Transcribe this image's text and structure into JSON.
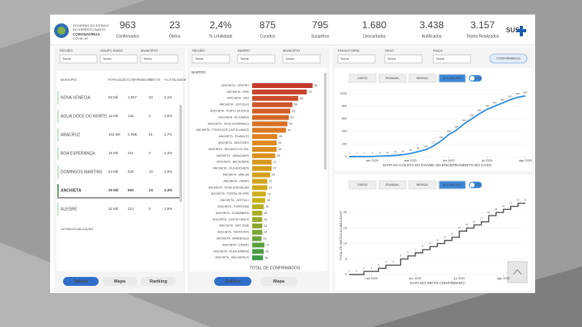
{
  "header": {
    "logo_lines": [
      "GOVERNO DO ESTADO",
      "DO ESPÍRITO SANTO"
    ],
    "logo_sub": "CORONAVÍRUS",
    "logo_sub2": "COVID-19",
    "sus": "SUS"
  },
  "kpis": [
    {
      "value": "963",
      "label": "Confirmados"
    },
    {
      "value": "23",
      "label": "Óbitos"
    },
    {
      "value": "2,4%",
      "label": "% Letalidade"
    },
    {
      "value": "875",
      "label": "Curados"
    },
    {
      "value": "795",
      "label": "Suspeitos"
    },
    {
      "value": "1.680",
      "label": "Descartados"
    },
    {
      "value": "3.438",
      "label": "Notificados"
    },
    {
      "value": "3.157",
      "label": "Testes Realizados"
    }
  ],
  "left": {
    "filters": [
      {
        "label": "REGIÃO",
        "value": "Todos"
      },
      {
        "label": "GRUPO IDADE",
        "value": "Todos"
      },
      {
        "label": "MUNICÍPIO",
        "value": "Todos"
      }
    ],
    "columns": [
      "MUNICÍPIO",
      "POPULAÇÃO",
      "CONFIRMADOS",
      "ÓBITOS",
      "% LETALIDADE"
    ],
    "rows": [
      [
        "NOVA VENÉCIA",
        "50 Mil",
        "1.557",
        "33",
        "2,1%"
      ],
      [
        "ÁGUA DOCE DO NORTE",
        "12 Mil",
        "132",
        "2",
        "1,5%"
      ],
      [
        "ARACRUZ",
        "103 Mil",
        "2.998",
        "51",
        "1,7%"
      ],
      [
        "BOA ESPERANÇA",
        "15 Mil",
        "211",
        "3",
        "1,4%"
      ],
      [
        "DOMINGOS MARTINS",
        "34 Mil",
        "520",
        "10",
        "1,9%"
      ],
      [
        "ANCHIETA",
        "30 Mil",
        "963",
        "23",
        "2,4%"
      ],
      [
        "ALEGRE",
        "31 Mil",
        "312",
        "5",
        "1,6%"
      ]
    ],
    "selected": 5,
    "footer": "ÚLTIMA ATUALIZAÇÃO",
    "buttons": [
      "Tabela",
      "Mapa",
      "Ranking"
    ],
    "active_button": 0
  },
  "middle": {
    "filters": [
      {
        "label": "REGIÃO",
        "value": "Todos"
      },
      {
        "label": "BAIRRO",
        "value": "Todos"
      },
      {
        "label": "MUNICÍPIO",
        "value": "Todos"
      }
    ],
    "chart_data": {
      "type": "bar",
      "title": "BAIRRO",
      "xlabel": "TOTAL DE CONFIRMADOS",
      "xlim": [
        0,
        90
      ],
      "palette": [
        "#c43b2c",
        "#e08a1e",
        "#c9b21a",
        "#3d9a4a"
      ],
      "categories": [
        "ANCHIETA - CENTRO",
        "ANCHIETA - IRIRI",
        "ANCHIETA - UBU",
        "ANCHIETA - JUSTIÇA II",
        "ANCHIETA - PORTO DA ROÇA",
        "ANCHIETA - ALVORADA",
        "ANCHIETA - NOVA ESPERANÇA",
        "ANCHIETA - PONTA DOS CASTELHANOS",
        "ANCHIETA - PLANALTO",
        "ANCHIETA - MONTEIRO",
        "ANCHIETA - RECANTO DO SOL",
        "ANCHIETA - JABAQUARA",
        "ANCHIETA - BELVEDERE",
        "ANCHIETA - VILA ANCHIETA",
        "ANCHIETA - MÃE BÁ",
        "ANCHIETA - PARATI",
        "ANCHIETA - NOVA JERUSALÉM",
        "ANCHIETA - PORTAL DE IRIRI",
        "ANCHIETA - JUSTIÇA I",
        "ANCHIETA - ITAPEROBA",
        "ANCHIETA - GUANABARA",
        "ANCHIETA - CASTELHANOS",
        "ANCHIETA - SÃO JOSÉ",
        "ANCHIETA - SANTA RITA",
        "ANCHIETA - ARREBOLES",
        "ANCHIETA - CÁRDIO",
        "ANCHIETA - DUAS BARRAS",
        "ANCHIETA - SÃO MATEUS"
      ],
      "values": [
        84,
        76,
        64,
        56,
        53,
        51,
        49,
        47,
        35,
        34,
        34,
        32,
        27,
        27,
        25,
        21,
        21,
        19,
        18,
        16,
        14,
        14,
        14,
        14,
        13,
        17,
        16,
        15
      ]
    },
    "buttons": [
      "Gráfico",
      "Mapa"
    ],
    "active_button": 0
  },
  "right": {
    "filters": [
      {
        "label": "FAIXA ETÁRIA",
        "value": "Todos"
      },
      {
        "label": "SEXO",
        "value": "Todos"
      },
      {
        "label": "RAÇA",
        "value": "Todos"
      }
    ],
    "pill": "CONFIRMADOS",
    "charts": [
      {
        "type": "line",
        "buttons": [
          "DIÁRIO",
          "SEMANAL",
          "MENSAL",
          "ACUMULADO"
        ],
        "active_button": 3,
        "toggle": "LOG",
        "color": "#2f8ede",
        "xlabel": "DATA DA COLETA DO EXAME OU ENCERRAMENTO DO CASO",
        "ylim": [
          0,
          1100
        ],
        "yticks": [
          0,
          200,
          400,
          600,
          800,
          1000
        ],
        "xlim": [
          0,
          23
        ],
        "xticks": [
          {
            "value": 3,
            "label": "abr 2020"
          },
          {
            "value": 8,
            "label": "mai 2020"
          },
          {
            "value": 13,
            "label": "jun 2020"
          },
          {
            "value": 18,
            "label": "jul 2020"
          },
          {
            "value": 23,
            "label": "ago 2020"
          }
        ],
        "values": [
          1,
          1,
          1,
          3,
          8,
          12,
          20,
          30,
          50,
          80,
          110,
          170,
          250,
          350,
          420,
          520,
          600,
          680,
          750,
          800,
          850,
          900,
          940,
          963
        ]
      },
      {
        "type": "step",
        "buttons": [
          "DIÁRIO",
          "SEMANAL",
          "MENSAL",
          "ACUMULADO"
        ],
        "active_button": 3,
        "toggle": "LOG",
        "color": "#555555",
        "xlabel": "DATA DO ÓBITO CONFIRMADO",
        "ylabel": "TOTAL DE ÓBITOS ACUMULADOS",
        "ylim": [
          0,
          25
        ],
        "yticks": [
          0,
          5,
          10,
          15,
          20
        ],
        "xlim": [
          0,
          24
        ],
        "xticks": [
          {
            "value": 3,
            "label": "mai 2020"
          },
          {
            "value": 9,
            "label": "jun 2020"
          },
          {
            "value": 15,
            "label": "jul 2020"
          },
          {
            "value": 21,
            "label": "ago 2020"
          }
        ],
        "values": [
          0,
          0,
          1,
          1,
          2,
          3,
          3,
          5,
          6,
          7,
          8,
          9,
          10,
          11,
          12,
          14,
          15,
          16,
          17,
          19,
          20,
          21,
          22,
          23,
          23
        ]
      }
    ]
  }
}
